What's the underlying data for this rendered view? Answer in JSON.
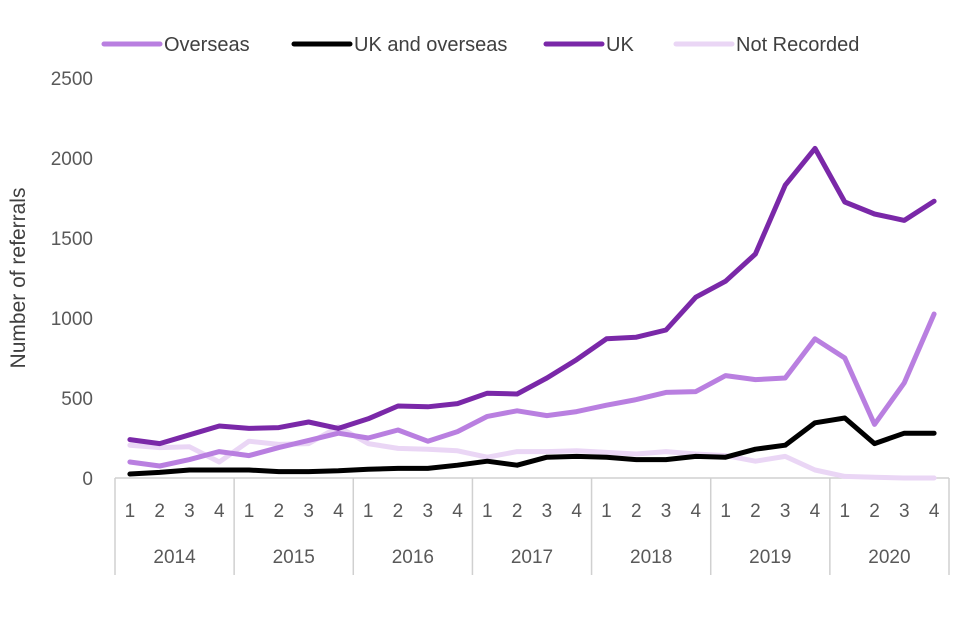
{
  "chart_data": {
    "type": "line",
    "title": "",
    "xlabel": "",
    "ylabel": "Number of referrals",
    "ylim": [
      0,
      2500
    ],
    "yticks": [
      0,
      500,
      1000,
      1500,
      2000,
      2500
    ],
    "grid": false,
    "legend_position": "top",
    "x_groups": [
      {
        "label": "2014",
        "quarters": [
          "1",
          "2",
          "3",
          "4"
        ]
      },
      {
        "label": "2015",
        "quarters": [
          "1",
          "2",
          "3",
          "4"
        ]
      },
      {
        "label": "2016",
        "quarters": [
          "1",
          "2",
          "3",
          "4"
        ]
      },
      {
        "label": "2017",
        "quarters": [
          "1",
          "2",
          "3",
          "4"
        ]
      },
      {
        "label": "2018",
        "quarters": [
          "1",
          "2",
          "3",
          "4"
        ]
      },
      {
        "label": "2019",
        "quarters": [
          "1",
          "2",
          "3",
          "4"
        ]
      },
      {
        "label": "2020",
        "quarters": [
          "1",
          "2",
          "3",
          "4"
        ]
      }
    ],
    "series": [
      {
        "name": "Overseas",
        "color": "#b97fe0",
        "values": [
          100,
          75,
          115,
          165,
          140,
          190,
          235,
          280,
          250,
          300,
          230,
          290,
          385,
          420,
          390,
          415,
          455,
          490,
          535,
          540,
          640,
          615,
          625,
          870,
          750,
          335,
          595,
          1025
        ]
      },
      {
        "name": "UK and overseas",
        "color": "#000000",
        "values": [
          25,
          35,
          50,
          50,
          50,
          40,
          40,
          45,
          55,
          60,
          60,
          80,
          105,
          80,
          130,
          135,
          130,
          115,
          115,
          135,
          130,
          180,
          205,
          345,
          375,
          215,
          280,
          280
        ]
      },
      {
        "name": "UK",
        "color": "#7a28a8",
        "values": [
          240,
          215,
          270,
          325,
          310,
          315,
          350,
          310,
          370,
          450,
          445,
          465,
          530,
          525,
          625,
          740,
          870,
          880,
          925,
          1130,
          1230,
          1400,
          1830,
          2060,
          1725,
          1650,
          1610,
          1730
        ]
      },
      {
        "name": "Not Recorded",
        "color": "#ead6f5",
        "values": [
          205,
          190,
          195,
          100,
          230,
          210,
          215,
          320,
          215,
          185,
          180,
          170,
          130,
          165,
          165,
          170,
          160,
          150,
          165,
          150,
          140,
          105,
          135,
          50,
          10,
          5,
          0,
          0
        ]
      }
    ]
  }
}
